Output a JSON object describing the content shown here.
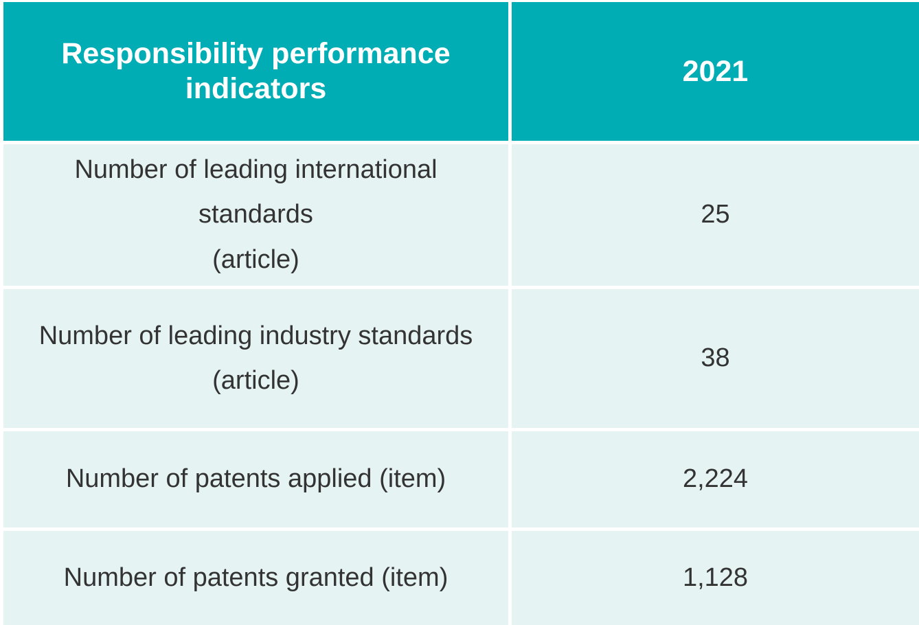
{
  "table": {
    "header": {
      "indicator_line1": "Responsibility performance",
      "indicator_line2": "indicators",
      "year": "2021"
    },
    "rows": [
      {
        "label_line1": "Number of leading international standards",
        "label_line2": "(article)",
        "value": "25"
      },
      {
        "label_line1": "Number of leading industry standards",
        "label_line2": "(article)",
        "value": "38"
      },
      {
        "label_line1": "Number of patents applied (item)",
        "label_line2": "",
        "value": "2,224"
      },
      {
        "label_line1": "Number of patents granted (item)",
        "label_line2": "",
        "value": "1,128"
      }
    ]
  },
  "colors": {
    "header_bg": "#00adb4",
    "row_bg": "#e5f3f3",
    "header_text": "#ffffff",
    "body_text": "#333333"
  }
}
